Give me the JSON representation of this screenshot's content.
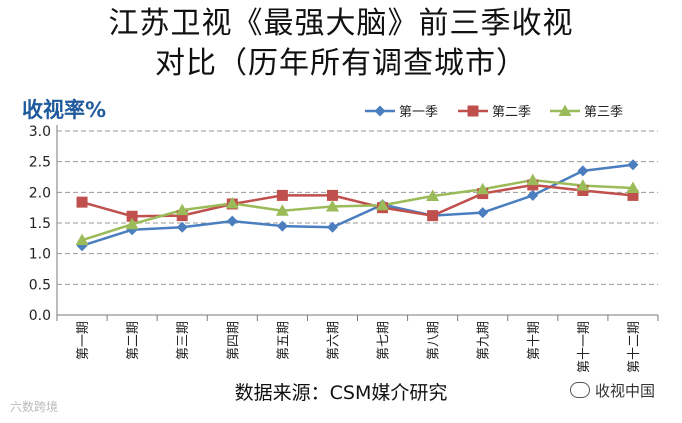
{
  "title_line1": "江苏卫视《最强大脑》前三季收视",
  "title_line2": "对比（历年所有调查城市）",
  "source_text": "数据来源：CSM媒介研究",
  "watermark_right": "收视中国",
  "watermark_left": "六数跨境",
  "chart_data": {
    "type": "line",
    "ylabel": "收视率%",
    "xlabel": "",
    "ylim": [
      0.0,
      3.0
    ],
    "yticks": [
      "0.0",
      "0.5",
      "1.0",
      "1.5",
      "2.0",
      "2.5",
      "3.0"
    ],
    "grid": true,
    "legend_position": "top-right",
    "categories": [
      "第一期",
      "第二期",
      "第三期",
      "第四期",
      "第五期",
      "第六期",
      "第七期",
      "第八期",
      "第九期",
      "第十期",
      "第十一期",
      "第十二期"
    ],
    "series": [
      {
        "name": "第一季",
        "color": "#4a7ebf",
        "marker": "diamond",
        "values": [
          1.13,
          1.39,
          1.43,
          1.53,
          1.45,
          1.43,
          1.8,
          1.62,
          1.67,
          1.95,
          2.35,
          2.45
        ]
      },
      {
        "name": "第二季",
        "color": "#c0504d",
        "marker": "square",
        "values": [
          1.84,
          1.61,
          1.62,
          1.81,
          1.95,
          1.95,
          1.75,
          1.62,
          1.98,
          2.12,
          2.03,
          1.95
        ]
      },
      {
        "name": "第三季",
        "color": "#9bbb59",
        "marker": "triangle",
        "values": [
          1.22,
          1.48,
          1.71,
          1.82,
          1.7,
          1.77,
          1.79,
          1.94,
          2.05,
          2.2,
          2.11,
          2.07
        ]
      }
    ]
  }
}
